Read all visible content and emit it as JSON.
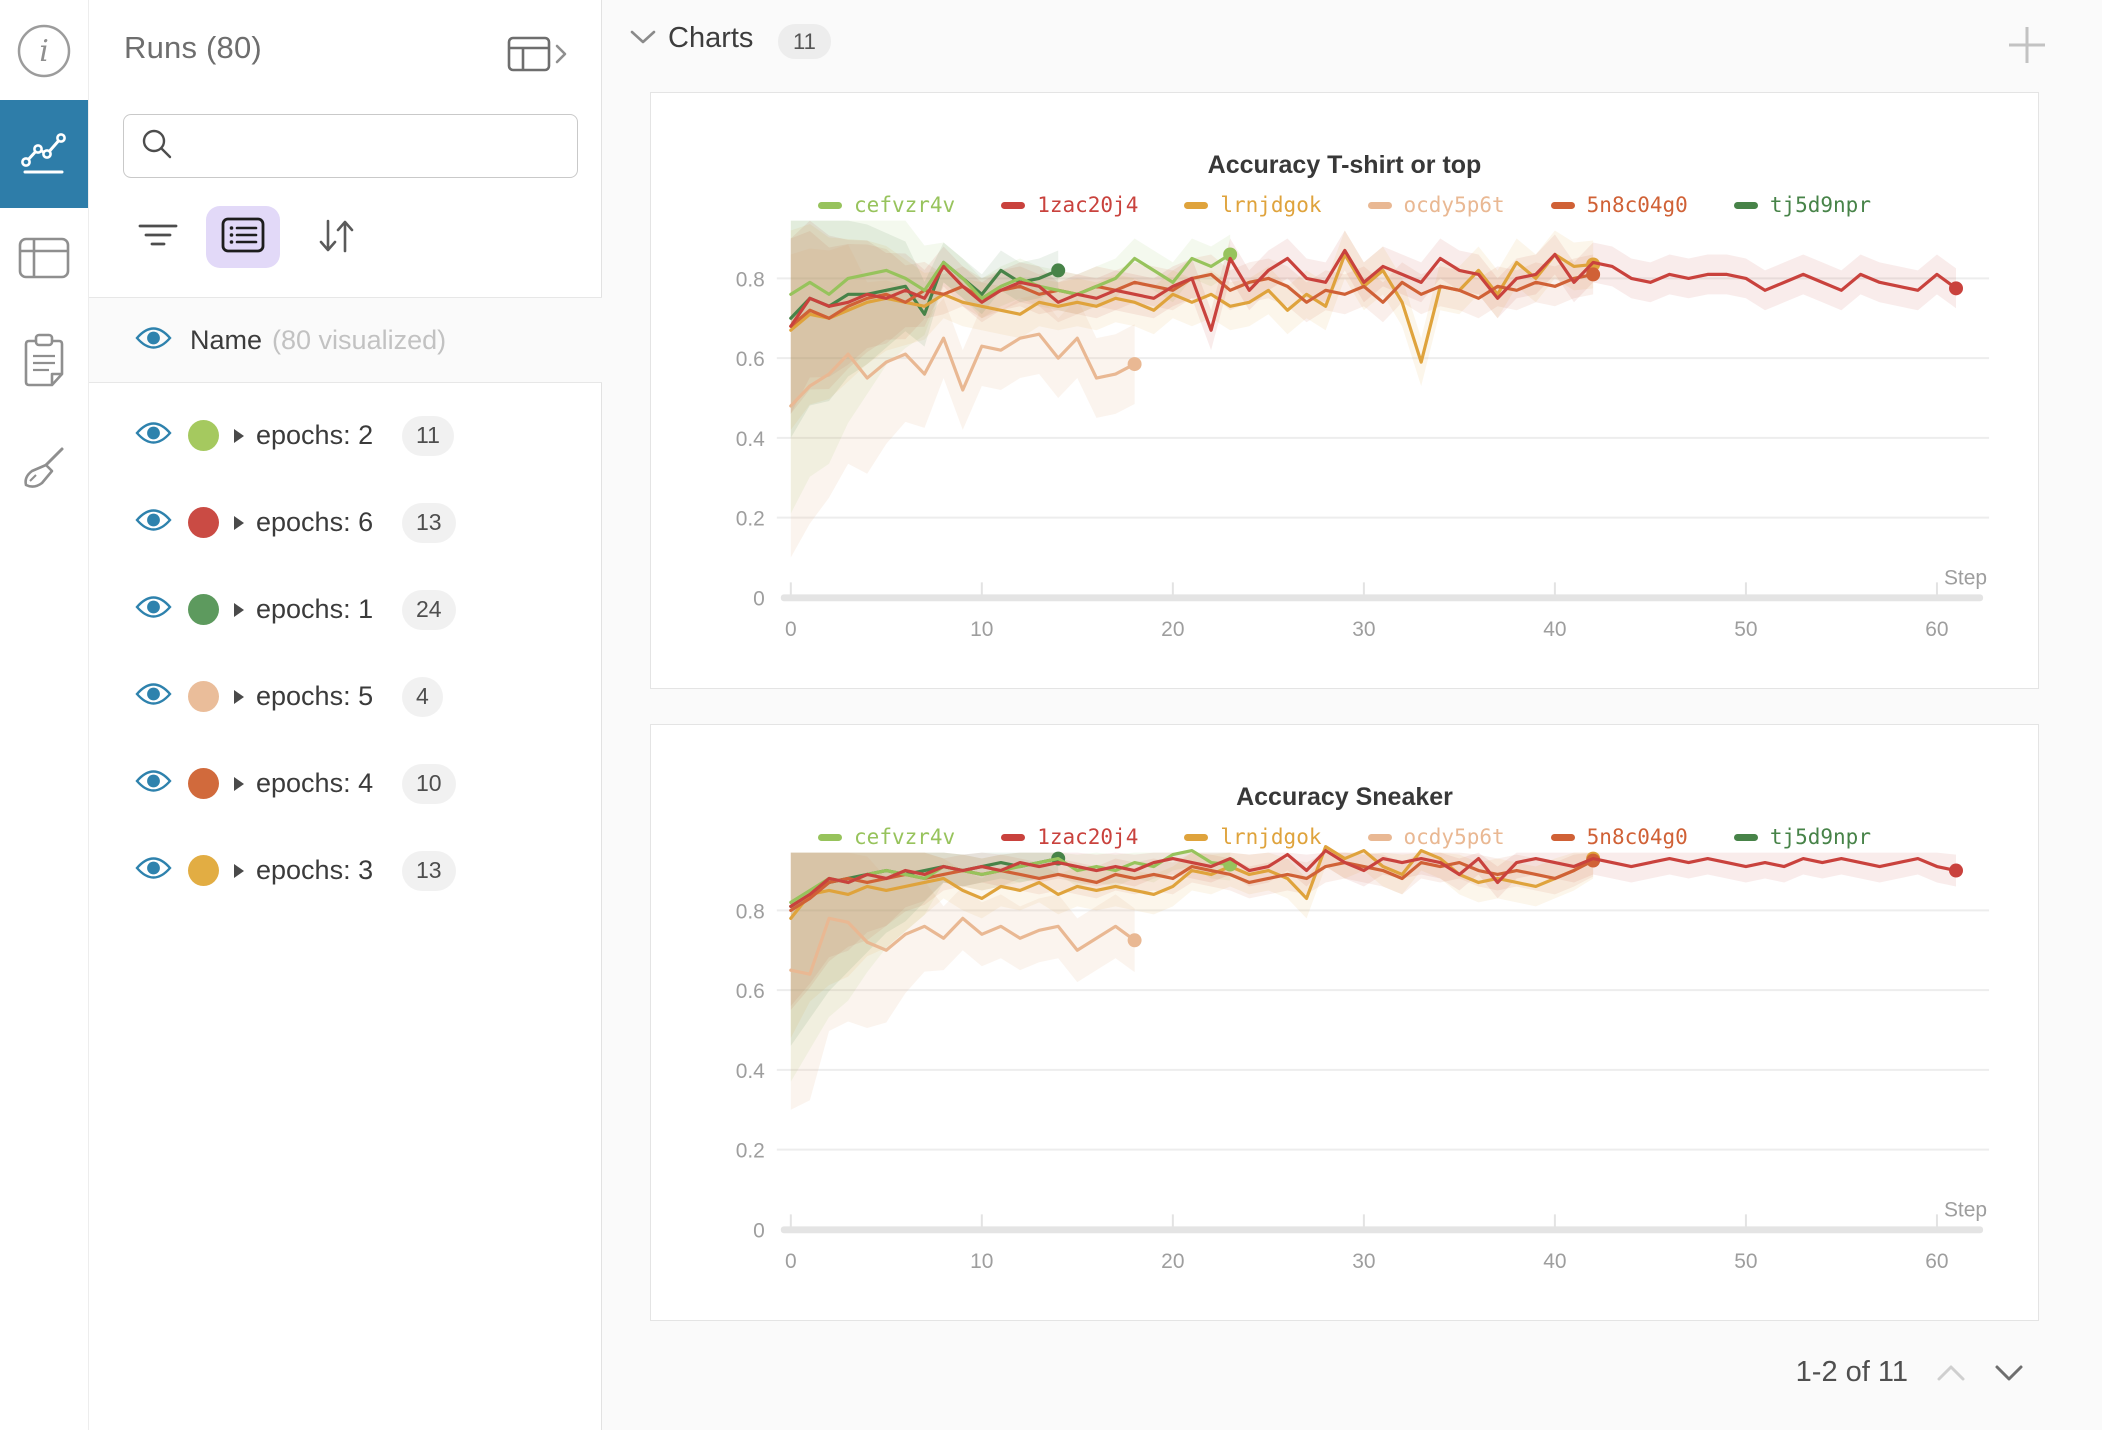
{
  "icon_rail": {
    "items": [
      {
        "icon": "info-icon",
        "selected": false
      },
      {
        "icon": "line-chart-icon",
        "selected": true
      },
      {
        "icon": "table-icon",
        "selected": false
      },
      {
        "icon": "clipboard-icon",
        "selected": false
      },
      {
        "icon": "broom-icon",
        "selected": false
      }
    ]
  },
  "sidebar": {
    "title": "Runs (80)",
    "table_expand_icon": "table-expand-icon",
    "search": {
      "placeholder": "",
      "value": ""
    },
    "header": {
      "label": "Name",
      "sub": "(80 visualized)"
    },
    "runs": [
      {
        "label": "epochs: 2",
        "count": "11",
        "color": "#a5c95f"
      },
      {
        "label": "epochs: 6",
        "count": "13",
        "color": "#ca4b44"
      },
      {
        "label": "epochs: 1",
        "count": "24",
        "color": "#5d9a5e"
      },
      {
        "label": "epochs: 5",
        "count": "4",
        "color": "#eabd9a"
      },
      {
        "label": "epochs: 4",
        "count": "10",
        "color": "#d16a3c"
      },
      {
        "label": "epochs: 3",
        "count": "13",
        "color": "#e2ad43"
      }
    ],
    "eye_color": "#2e82ad"
  },
  "main": {
    "section": {
      "title": "Charts",
      "count": "11"
    },
    "pagination": {
      "label": "1-2 of 11"
    }
  },
  "colors": {
    "accent_blue": "#2e7da9",
    "lavender": "#e2d9f8",
    "grid": "#ededed",
    "axis_bar": "#e4e4e4",
    "tick_text": "#9e9e9e"
  },
  "chart_data": [
    {
      "type": "line",
      "title": "Accuracy T-shirt or top",
      "xlabel": "Step",
      "x_ticks": [
        0,
        10,
        20,
        30,
        40,
        50,
        60
      ],
      "y_ticks": [
        0,
        0.2,
        0.4,
        0.6,
        0.8
      ],
      "xlim": [
        0,
        63
      ],
      "ylim": [
        0,
        0.95
      ],
      "grid": true,
      "legend_position": "top",
      "series": [
        {
          "name": "cefvzr4v",
          "color": "#97c35c",
          "band": 0.05,
          "band_start": 0.55,
          "values": [
            0.76,
            0.79,
            0.76,
            0.8,
            0.81,
            0.82,
            0.8,
            0.77,
            0.84,
            0.8,
            0.75,
            0.78,
            0.8,
            0.78,
            0.77,
            0.76,
            0.78,
            0.8,
            0.85,
            0.82,
            0.79,
            0.85,
            0.83,
            0.86
          ]
        },
        {
          "name": "1zac20j4",
          "color": "#c9423d",
          "band": 0.05,
          "band_start": 0.22,
          "values": [
            0.68,
            0.75,
            0.73,
            0.74,
            0.76,
            0.75,
            0.77,
            0.75,
            0.83,
            0.78,
            0.74,
            0.77,
            0.79,
            0.78,
            0.74,
            0.76,
            0.75,
            0.77,
            0.76,
            0.75,
            0.78,
            0.8,
            0.67,
            0.85,
            0.77,
            0.82,
            0.85,
            0.8,
            0.79,
            0.87,
            0.79,
            0.83,
            0.81,
            0.79,
            0.85,
            0.82,
            0.81,
            0.75,
            0.8,
            0.81,
            0.86,
            0.79,
            0.84,
            0.83,
            0.8,
            0.79,
            0.81,
            0.8,
            0.81,
            0.81,
            0.8,
            0.77,
            0.79,
            0.81,
            0.79,
            0.77,
            0.81,
            0.79,
            0.78,
            0.77,
            0.81,
            0.775
          ]
        },
        {
          "name": "lrnjdgok",
          "color": "#dfa33c",
          "band": 0.06,
          "band_start": 0.25,
          "values": [
            0.67,
            0.71,
            0.7,
            0.72,
            0.74,
            0.75,
            0.74,
            0.73,
            0.76,
            0.74,
            0.73,
            0.72,
            0.71,
            0.74,
            0.73,
            0.74,
            0.73,
            0.75,
            0.74,
            0.72,
            0.76,
            0.74,
            0.76,
            0.73,
            0.74,
            0.77,
            0.72,
            0.76,
            0.73,
            0.86,
            0.78,
            0.82,
            0.74,
            0.59,
            0.78,
            0.77,
            0.82,
            0.76,
            0.84,
            0.8,
            0.86,
            0.83,
            0.835
          ]
        },
        {
          "name": "ocdy5p6t",
          "color": "#e9b893",
          "band": 0.1,
          "band_start": 0.38,
          "values": [
            0.48,
            0.53,
            0.56,
            0.61,
            0.55,
            0.59,
            0.61,
            0.56,
            0.65,
            0.52,
            0.63,
            0.62,
            0.65,
            0.66,
            0.6,
            0.65,
            0.55,
            0.56,
            0.585
          ]
        },
        {
          "name": "5n8c04g0",
          "color": "#d06136",
          "band": 0.05,
          "band_start": 0.22,
          "values": [
            0.68,
            0.72,
            0.7,
            0.73,
            0.75,
            0.76,
            0.74,
            0.77,
            0.76,
            0.78,
            0.75,
            0.77,
            0.78,
            0.76,
            0.77,
            0.76,
            0.78,
            0.77,
            0.79,
            0.78,
            0.77,
            0.8,
            0.81,
            0.77,
            0.79,
            0.8,
            0.78,
            0.74,
            0.77,
            0.76,
            0.78,
            0.74,
            0.79,
            0.76,
            0.78,
            0.77,
            0.75,
            0.78,
            0.77,
            0.79,
            0.78,
            0.8,
            0.81
          ]
        },
        {
          "name": "tj5d9npr",
          "color": "#478348",
          "band": 0.05,
          "band_start": 0.3,
          "values": [
            0.7,
            0.75,
            0.73,
            0.76,
            0.76,
            0.77,
            0.78,
            0.71,
            0.84,
            0.8,
            0.76,
            0.82,
            0.79,
            0.8,
            0.82
          ]
        }
      ]
    },
    {
      "type": "line",
      "title": "Accuracy Sneaker",
      "xlabel": "Step",
      "x_ticks": [
        0,
        10,
        20,
        30,
        40,
        50,
        60
      ],
      "y_ticks": [
        0,
        0.2,
        0.4,
        0.6,
        0.8
      ],
      "xlim": [
        0,
        63
      ],
      "ylim": [
        0,
        0.97
      ],
      "grid": true,
      "legend_position": "top",
      "series": [
        {
          "name": "cefvzr4v",
          "color": "#97c35c",
          "band": 0.04,
          "band_start": 0.45,
          "values": [
            0.82,
            0.85,
            0.88,
            0.87,
            0.89,
            0.9,
            0.89,
            0.88,
            0.91,
            0.9,
            0.89,
            0.9,
            0.91,
            0.92,
            0.93,
            0.9,
            0.91,
            0.9,
            0.92,
            0.91,
            0.94,
            0.95,
            0.92,
            0.915
          ]
        },
        {
          "name": "1zac20j4",
          "color": "#c9423d",
          "band": 0.04,
          "band_start": 0.25,
          "values": [
            0.81,
            0.84,
            0.88,
            0.87,
            0.89,
            0.88,
            0.9,
            0.89,
            0.91,
            0.9,
            0.91,
            0.9,
            0.92,
            0.91,
            0.92,
            0.91,
            0.9,
            0.91,
            0.9,
            0.92,
            0.93,
            0.92,
            0.91,
            0.93,
            0.9,
            0.91,
            0.94,
            0.9,
            0.95,
            0.92,
            0.9,
            0.93,
            0.92,
            0.93,
            0.92,
            0.89,
            0.93,
            0.87,
            0.92,
            0.93,
            0.92,
            0.91,
            0.93,
            0.92,
            0.91,
            0.92,
            0.93,
            0.92,
            0.93,
            0.92,
            0.91,
            0.92,
            0.91,
            0.93,
            0.92,
            0.93,
            0.92,
            0.91,
            0.92,
            0.93,
            0.91,
            0.9
          ]
        },
        {
          "name": "lrnjdgok",
          "color": "#dfa33c",
          "band": 0.05,
          "band_start": 0.3,
          "values": [
            0.78,
            0.84,
            0.85,
            0.84,
            0.86,
            0.85,
            0.86,
            0.87,
            0.88,
            0.85,
            0.83,
            0.86,
            0.85,
            0.87,
            0.84,
            0.86,
            0.85,
            0.86,
            0.85,
            0.84,
            0.86,
            0.9,
            0.89,
            0.91,
            0.89,
            0.9,
            0.88,
            0.83,
            0.96,
            0.93,
            0.95,
            0.91,
            0.89,
            0.95,
            0.93,
            0.89,
            0.87,
            0.88,
            0.87,
            0.86,
            0.88,
            0.9,
            0.93
          ]
        },
        {
          "name": "ocdy5p6t",
          "color": "#e9b893",
          "band": 0.08,
          "band_start": 0.35,
          "values": [
            0.65,
            0.64,
            0.78,
            0.77,
            0.72,
            0.7,
            0.74,
            0.76,
            0.73,
            0.78,
            0.74,
            0.76,
            0.73,
            0.75,
            0.76,
            0.7,
            0.73,
            0.76,
            0.725
          ]
        },
        {
          "name": "5n8c04g0",
          "color": "#d06136",
          "band": 0.04,
          "band_start": 0.25,
          "values": [
            0.8,
            0.83,
            0.87,
            0.88,
            0.87,
            0.88,
            0.89,
            0.88,
            0.89,
            0.9,
            0.89,
            0.9,
            0.89,
            0.88,
            0.89,
            0.88,
            0.87,
            0.89,
            0.88,
            0.89,
            0.88,
            0.91,
            0.9,
            0.89,
            0.87,
            0.88,
            0.89,
            0.88,
            0.91,
            0.92,
            0.91,
            0.9,
            0.88,
            0.92,
            0.91,
            0.92,
            0.9,
            0.89,
            0.9,
            0.89,
            0.88,
            0.9,
            0.925
          ]
        },
        {
          "name": "tj5d9npr",
          "color": "#478348",
          "band": 0.04,
          "band_start": 0.35,
          "values": [
            0.81,
            0.84,
            0.87,
            0.88,
            0.89,
            0.9,
            0.89,
            0.9,
            0.91,
            0.9,
            0.91,
            0.92,
            0.91,
            0.92,
            0.93
          ]
        }
      ]
    }
  ]
}
